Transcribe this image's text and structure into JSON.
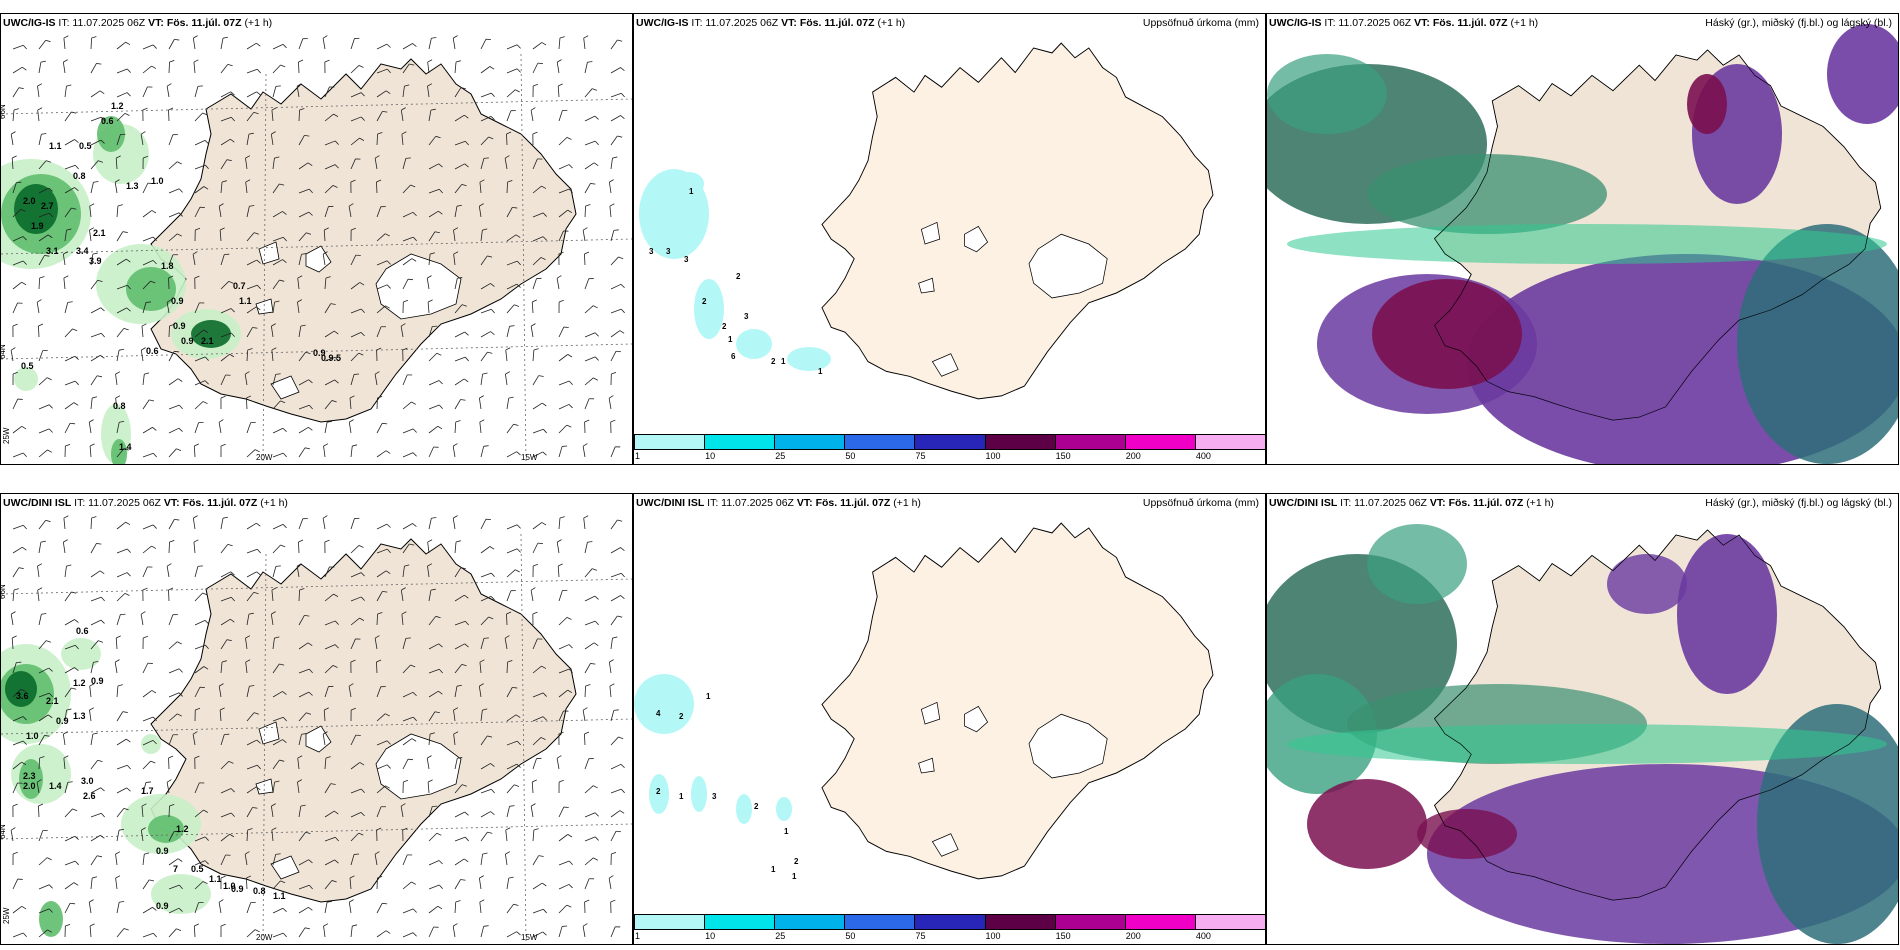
{
  "top": {
    "wind": {
      "model": "UWC/IG-IS",
      "it": "IT: 11.07.2025 06Z",
      "vt_label": "VT:",
      "vt": "Fös. 11.júl. 07Z",
      "step": "(+1 h)"
    },
    "precip": {
      "model": "UWC/IG-IS",
      "it": "IT: 11.07.2025 06Z",
      "vt_label": "VT:",
      "vt": "Fös. 11.júl. 07Z",
      "step": "(+1 h)",
      "title": "Uppsöfnuð úrkoma (mm)"
    },
    "cloud": {
      "model": "UWC/IG-IS",
      "it": "IT: 11.07.2025 06Z",
      "vt_label": "VT:",
      "vt": "Fös. 11.júl. 07Z",
      "step": "(+1 h)",
      "title": "Háský (gr.), miðský (fj.bl.) og lágský (bl.)"
    }
  },
  "bottom": {
    "wind": {
      "model": "UWC/DINI ISL",
      "it": "IT: 11.07.2025 06Z",
      "vt_label": "VT:",
      "vt": "Fös. 11.júl. 07Z",
      "step": "(+1 h)"
    },
    "precip": {
      "model": "UWC/DINI ISL",
      "it": "IT: 11.07.2025 06Z",
      "vt_label": "VT:",
      "vt": "Fös. 11.júl. 07Z",
      "step": "(+1 h)",
      "title": "Uppsöfnuð úrkoma (mm)"
    },
    "cloud": {
      "model": "UWC/DINI ISL",
      "it": "IT: 11.07.2025 06Z",
      "vt_label": "VT:",
      "vt": "Fös. 11.júl. 07Z",
      "step": "(+1 h)",
      "title": "Háský (gr.), miðský (fj.bl.) og lágský (bl.)"
    }
  },
  "grid_labels": {
    "lat66": "66N",
    "lat65": "65N",
    "lat64": "64N",
    "lon25": "25W",
    "lon20": "20W",
    "lon15": "15W"
  },
  "colorbar": {
    "ticks": [
      "1",
      "10",
      "25",
      "50",
      "75",
      "100",
      "150",
      "200",
      "400"
    ],
    "colors": [
      "#b4f7f7",
      "#00e4ea",
      "#00b2ea",
      "#2c69e8",
      "#2826b8",
      "#5e0046",
      "#ac0093",
      "#f000c6",
      "#f6aef0"
    ]
  },
  "colors": {
    "land": "#efe4d6",
    "land_precip": "#fdf1e4",
    "ice": "#ffffff",
    "precip_light": "#c8efc8",
    "precip_mid": "#5fbe6e",
    "precip_heavy": "#0a6a2a",
    "high_cloud": "#2e6f5a",
    "mid_cloud": "#6a3aa0",
    "low_cloud": "#7a1050"
  },
  "top_wind_values": [
    "1.2",
    "0.6",
    "0.5",
    "1.1",
    "0.8",
    "2.0",
    "2.7",
    "1.9",
    "3.1",
    "3.4",
    "3.9",
    "2.1",
    "1.8",
    "0.7",
    "1.1",
    "0.9",
    "0.9",
    "0.9",
    "2.1",
    "0.6",
    "0.9",
    "0.9.5",
    "0.5",
    "0.8",
    "1.4",
    "1.0",
    "1.3"
  ],
  "bottom_wind_values": [
    "0.6",
    "3.6",
    "2.1",
    "1.2",
    "0.9",
    "0.9",
    "1.3",
    "1.0",
    "2.3",
    "2.0",
    "1.4",
    "3.0",
    "2.6",
    "1.7",
    "1.2",
    "0.9",
    "7",
    "0.5",
    "1.1",
    "1.0",
    "0.9",
    "0.8",
    "1.1",
    "0.9"
  ],
  "top_precip_values": [
    "1",
    "3",
    "3",
    "3",
    "2",
    "2",
    "3",
    "2",
    "1",
    "6",
    "2",
    "1",
    "1"
  ],
  "bottom_precip_values": [
    "4",
    "2",
    "1",
    "2",
    "1",
    "3",
    "2",
    "1",
    "2",
    "1",
    "1"
  ]
}
